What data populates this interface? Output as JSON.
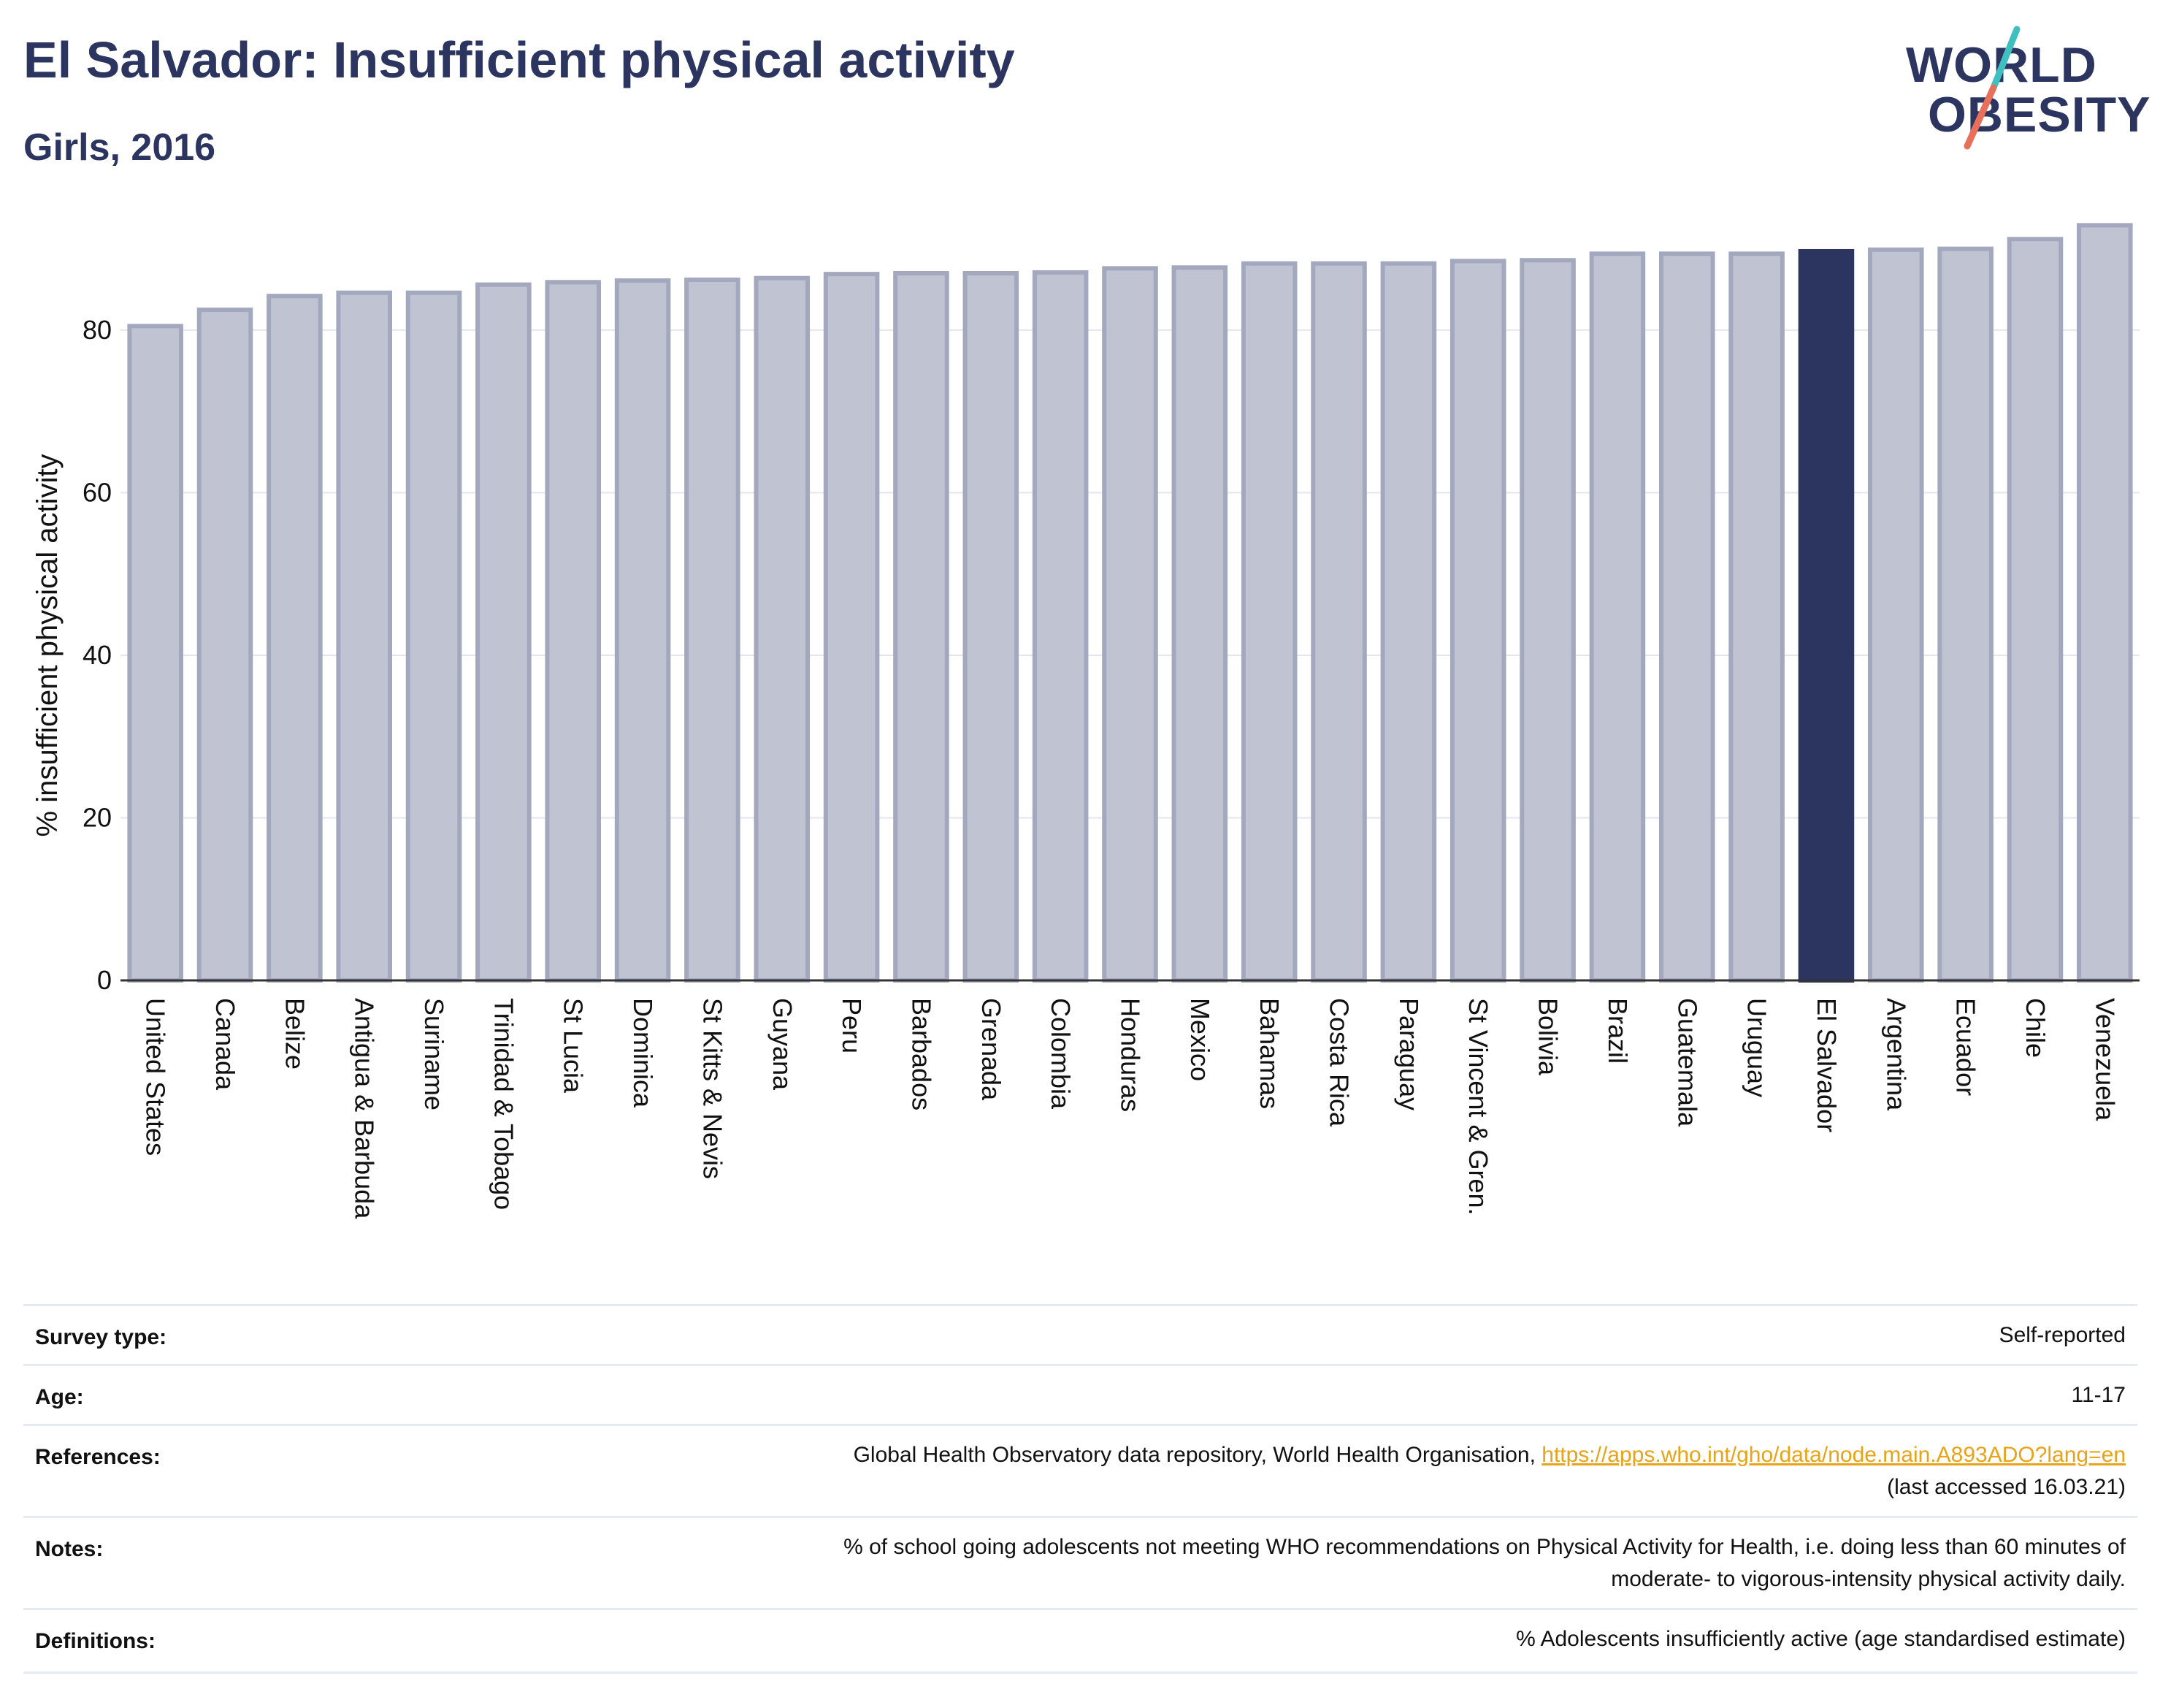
{
  "header": {
    "title": "El Salvador: Insufficient physical activity",
    "subtitle": "Girls, 2016"
  },
  "logo": {
    "line1": "WORLD",
    "line2": "OBESITY",
    "slash_colors": [
      "#3fbfbf",
      "#e8705a"
    ]
  },
  "chart_data": {
    "type": "bar",
    "ylabel": "% insufficient physical activity",
    "ylim": [
      0,
      95
    ],
    "yticks": [
      0,
      20,
      40,
      60,
      80
    ],
    "grid": true,
    "highlight": "El Salvador",
    "colors": {
      "bar": "#c0c3d1",
      "bar_border": "#a3a8bf",
      "highlight": "#2b3560"
    },
    "categories": [
      "United States",
      "Canada",
      "Belize",
      "Antigua & Barbuda",
      "Suriname",
      "Trinidad & Tobago",
      "St Lucia",
      "Dominica",
      "St Kitts & Nevis",
      "Guyana",
      "Peru",
      "Barbados",
      "Grenada",
      "Colombia",
      "Honduras",
      "Mexico",
      "Bahamas",
      "Costa Rica",
      "Paraguay",
      "St Vincent & Gren.",
      "Bolivia",
      "Brazil",
      "Guatemala",
      "Uruguay",
      "El Salvador",
      "Argentina",
      "Ecuador",
      "Chile",
      "Venezuela"
    ],
    "values": [
      80.5,
      82.5,
      84.2,
      84.6,
      84.6,
      85.6,
      85.9,
      86.1,
      86.2,
      86.4,
      86.9,
      87.0,
      87.0,
      87.1,
      87.6,
      87.7,
      88.2,
      88.2,
      88.2,
      88.5,
      88.6,
      89.4,
      89.4,
      89.4,
      89.7,
      89.9,
      90.0,
      91.2,
      92.9
    ]
  },
  "meta": {
    "survey_type": {
      "label": "Survey type:",
      "value": "Self-reported"
    },
    "age": {
      "label": "Age:",
      "value": "11-17"
    },
    "references": {
      "label": "References:",
      "text": "Global Health Observatory data repository, World Health Organisation, ",
      "link": "https://apps.who.int/gho/data/node.main.A893ADO?lang=en",
      "suffix": "(last accessed 16.03.21)"
    },
    "notes": {
      "label": "Notes:",
      "line1": "% of school going adolescents not meeting WHO recommendations on Physical Activity for Health, i.e. doing less than 60 minutes of",
      "line2": "moderate- to vigorous-intensity physical activity daily."
    },
    "definitions": {
      "label": "Definitions:",
      "value": "% Adolescents insufficiently active (age standardised estimate)"
    }
  }
}
